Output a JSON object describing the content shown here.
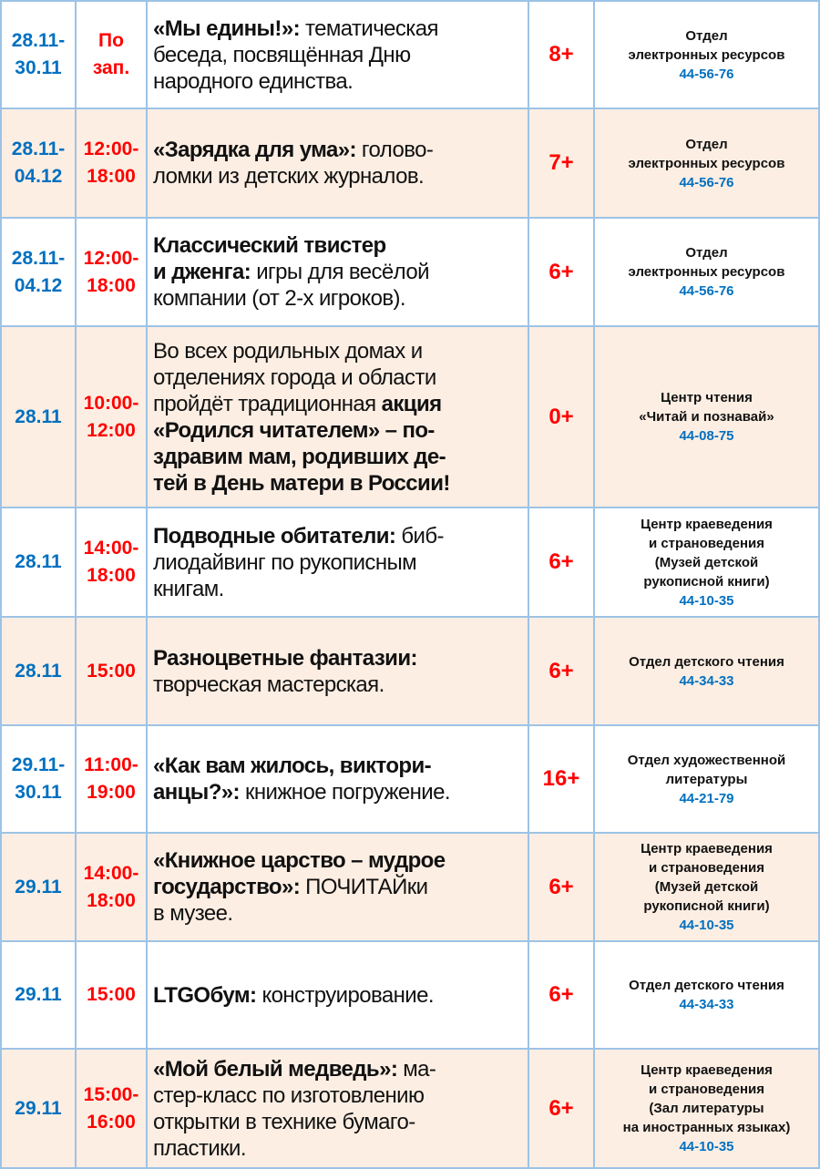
{
  "colors": {
    "date": "#0070c0",
    "time": "#ff0000",
    "age": "#ff0000",
    "phone": "#0070c0",
    "alt_row_bg": "#fdeee3",
    "border": "#9dc3e6"
  },
  "rows": [
    {
      "date": [
        "28.11-",
        "30.11"
      ],
      "time": [
        "По",
        "зап."
      ],
      "desc": [
        [
          {
            "b": "«Мы едины!»:"
          },
          {
            "t": " тематическая"
          }
        ],
        [
          {
            "t": "беседа, посвящённая Дню"
          }
        ],
        [
          {
            "t": "народного единства."
          }
        ]
      ],
      "age": "8+",
      "dept": [
        "Отдел",
        "электронных ресурсов"
      ],
      "phone": "44-56-76"
    },
    {
      "date": [
        "28.11-",
        "04.12"
      ],
      "time": [
        "12:00-",
        "18:00"
      ],
      "desc": [
        [
          {
            "b": "«Зарядка для ума»:"
          },
          {
            "t": " голово-"
          }
        ],
        [
          {
            "t": "ломки из детских журналов."
          }
        ]
      ],
      "age": "7+",
      "dept": [
        "Отдел",
        "электронных ресурсов"
      ],
      "phone": "44-56-76"
    },
    {
      "date": [
        "28.11-",
        "04.12"
      ],
      "time": [
        "12:00-",
        "18:00"
      ],
      "desc": [
        [
          {
            "b": "Классический твистер"
          }
        ],
        [
          {
            "b": "и дженга:"
          },
          {
            "t": " игры для весёлой"
          }
        ],
        [
          {
            "t": "компании (от 2-х игроков)."
          }
        ]
      ],
      "age": "6+",
      "dept": [
        "Отдел",
        "электронных ресурсов"
      ],
      "phone": "44-56-76"
    },
    {
      "date": [
        "28.11"
      ],
      "time": [
        "10:00-",
        "12:00"
      ],
      "desc": [
        [
          {
            "t": "Во всех родильных домах и"
          }
        ],
        [
          {
            "t": "отделениях города и области"
          }
        ],
        [
          {
            "t": "пройдёт традиционная "
          },
          {
            "b": "акция"
          }
        ],
        [
          {
            "b": "«Родился читателем» – по-"
          }
        ],
        [
          {
            "b": "здравим мам, родивших де-"
          }
        ],
        [
          {
            "b": "тей в День матери в России!"
          }
        ]
      ],
      "age": "0+",
      "dept": [
        "Центр чтения",
        "«Читай и познавай»"
      ],
      "phone": "44-08-75"
    },
    {
      "date": [
        "28.11"
      ],
      "time": [
        "14:00-",
        "18:00"
      ],
      "desc": [
        [
          {
            "b": "Подводные обитатели:"
          },
          {
            "t": " биб-"
          }
        ],
        [
          {
            "t": "лиодайвинг по рукописным"
          }
        ],
        [
          {
            "t": "книгам."
          }
        ]
      ],
      "age": "6+",
      "dept": [
        "Центр краеведения",
        "и страноведения",
        "(Музей детской",
        "рукописной книги)"
      ],
      "phone": "44-10-35"
    },
    {
      "date": [
        "28.11"
      ],
      "time": [
        "15:00"
      ],
      "desc": [
        [
          {
            "b": "Разноцветные фантазии:"
          }
        ],
        [
          {
            "t": "творческая мастерская."
          }
        ]
      ],
      "age": "6+",
      "dept": [
        "Отдел детского чтения"
      ],
      "phone": "44-34-33"
    },
    {
      "date": [
        "29.11-",
        "30.11"
      ],
      "time": [
        "11:00-",
        "19:00"
      ],
      "desc": [
        [
          {
            "b": "«Как вам жилось, виктори-"
          }
        ],
        [
          {
            "b": "анцы?»:"
          },
          {
            "t": " книжное погружение."
          }
        ]
      ],
      "age": "16+",
      "dept": [
        "Отдел художественной",
        "литературы"
      ],
      "phone": "44-21-79"
    },
    {
      "date": [
        "29.11"
      ],
      "time": [
        "14:00-",
        "18:00"
      ],
      "desc": [
        [
          {
            "b": "«Книжное царство – мудрое"
          }
        ],
        [
          {
            "b": "государство»:"
          },
          {
            "t": " ПОЧИТАЙки"
          }
        ],
        [
          {
            "t": "в музее."
          }
        ]
      ],
      "age": "6+",
      "dept": [
        "Центр краеведения",
        "и страноведения",
        "(Музей детской",
        "рукописной книги)"
      ],
      "phone": "44-10-35"
    },
    {
      "date": [
        "29.11"
      ],
      "time": [
        "15:00"
      ],
      "desc": [
        [
          {
            "b": "LTGOбум:"
          },
          {
            "t": " конструирование."
          }
        ]
      ],
      "age": "6+",
      "dept": [
        "Отдел детского чтения"
      ],
      "phone": "44-34-33"
    },
    {
      "date": [
        "29.11"
      ],
      "time": [
        "15:00-",
        "16:00"
      ],
      "desc": [
        [
          {
            "b": "«Мой белый медведь»:"
          },
          {
            "t": " ма-"
          }
        ],
        [
          {
            "t": "стер-класс по изготовлению"
          }
        ],
        [
          {
            "t": "открытки в технике бумаго-"
          }
        ],
        [
          {
            "t": "пластики."
          }
        ]
      ],
      "age": "6+",
      "dept": [
        "Центр краеведения",
        "и страноведения",
        "(Зал литературы",
        "на иностранных языках)"
      ],
      "phone": "44-10-35"
    }
  ]
}
